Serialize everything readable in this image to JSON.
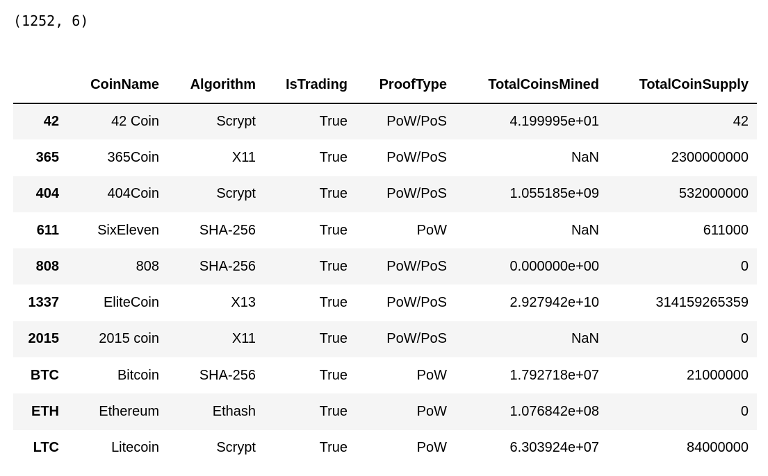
{
  "output": {
    "shape_text": "(1252, 6)"
  },
  "dataframe": {
    "columns": [
      "",
      "CoinName",
      "Algorithm",
      "IsTrading",
      "ProofType",
      "TotalCoinsMined",
      "TotalCoinSupply"
    ],
    "rows": [
      [
        "42",
        "42 Coin",
        "Scrypt",
        "True",
        "PoW/PoS",
        "4.199995e+01",
        "42"
      ],
      [
        "365",
        "365Coin",
        "X11",
        "True",
        "PoW/PoS",
        "NaN",
        "2300000000"
      ],
      [
        "404",
        "404Coin",
        "Scrypt",
        "True",
        "PoW/PoS",
        "1.055185e+09",
        "532000000"
      ],
      [
        "611",
        "SixEleven",
        "SHA-256",
        "True",
        "PoW",
        "NaN",
        "611000"
      ],
      [
        "808",
        "808",
        "SHA-256",
        "True",
        "PoW/PoS",
        "0.000000e+00",
        "0"
      ],
      [
        "1337",
        "EliteCoin",
        "X13",
        "True",
        "PoW/PoS",
        "2.927942e+10",
        "314159265359"
      ],
      [
        "2015",
        "2015 coin",
        "X11",
        "True",
        "PoW/PoS",
        "NaN",
        "0"
      ],
      [
        "BTC",
        "Bitcoin",
        "SHA-256",
        "True",
        "PoW",
        "1.792718e+07",
        "21000000"
      ],
      [
        "ETH",
        "Ethereum",
        "Ethash",
        "True",
        "PoW",
        "1.076842e+08",
        "0"
      ],
      [
        "LTC",
        "Litecoin",
        "Scrypt",
        "True",
        "PoW",
        "6.303924e+07",
        "84000000"
      ]
    ]
  },
  "colors": {
    "odd_row_bg": "#f5f5f5",
    "even_row_bg": "#ffffff",
    "text": "#000000",
    "header_border": "#000000"
  }
}
